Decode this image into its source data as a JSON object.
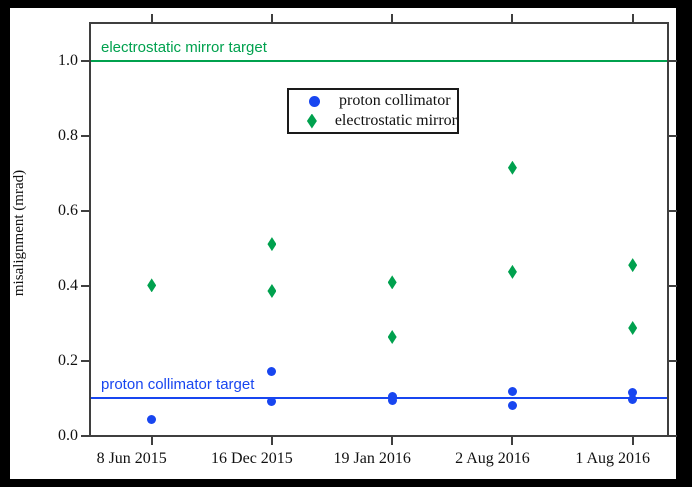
{
  "chart_data": {
    "type": "scatter",
    "title": "",
    "xlabel": "",
    "ylabel": "misalignment (mrad)",
    "x_tick_labels": [
      "8 Jun 2015",
      "16 Dec 2015",
      "19 Jan 2016",
      "2 Aug 2016",
      "1 Aug 2016"
    ],
    "y_tick_labels": [
      "0.0",
      "0.2",
      "0.4",
      "0.6",
      "0.8",
      "1.0"
    ],
    "y_tick_values": [
      0.0,
      0.2,
      0.4,
      0.6,
      0.8,
      1.0
    ],
    "ylim": [
      0,
      1.1
    ],
    "grid": false,
    "legend_position": "upper-center",
    "series": [
      {
        "name": "proton collimator",
        "marker": "circle",
        "color": "#1846f0",
        "points": [
          {
            "date": "8 Jun 2015",
            "value": 0.042
          },
          {
            "date": "16 Dec 2015",
            "value": 0.171
          },
          {
            "date": "16 Dec 2015",
            "value": 0.09
          },
          {
            "date": "19 Jan 2016",
            "value": 0.105
          },
          {
            "date": "19 Jan 2016",
            "value": 0.093
          },
          {
            "date": "2 Aug 2016",
            "value": 0.117
          },
          {
            "date": "2 Aug 2016",
            "value": 0.08
          },
          {
            "date": "1 Aug 2016",
            "value": 0.116
          },
          {
            "date": "1 Aug 2016",
            "value": 0.095
          }
        ]
      },
      {
        "name": "electrostatic mirror",
        "marker": "diamond",
        "color": "#00a14e",
        "points": [
          {
            "date": "8 Jun 2015",
            "value": 0.401
          },
          {
            "date": "16 Dec 2015",
            "value": 0.511
          },
          {
            "date": "16 Dec 2015",
            "value": 0.386
          },
          {
            "date": "19 Jan 2016",
            "value": 0.409
          },
          {
            "date": "19 Jan 2016",
            "value": 0.263
          },
          {
            "date": "2 Aug 2016",
            "value": 0.715
          },
          {
            "date": "2 Aug 2016",
            "value": 0.437
          },
          {
            "date": "1 Aug 2016",
            "value": 0.455
          },
          {
            "date": "1 Aug 2016",
            "value": 0.287
          }
        ]
      }
    ],
    "target_lines": [
      {
        "label": "electrostatic mirror target",
        "value": 1.0,
        "color": "#00a14e"
      },
      {
        "label": "proton collimator target",
        "value": 0.1,
        "color": "#1846f0"
      }
    ]
  },
  "colors": {
    "proton_blue": "#1846f0",
    "mirror_green": "#00a14e",
    "frame_gray": "#3f3f3f",
    "page_background": "#000000",
    "plot_background": "#ffffff"
  }
}
